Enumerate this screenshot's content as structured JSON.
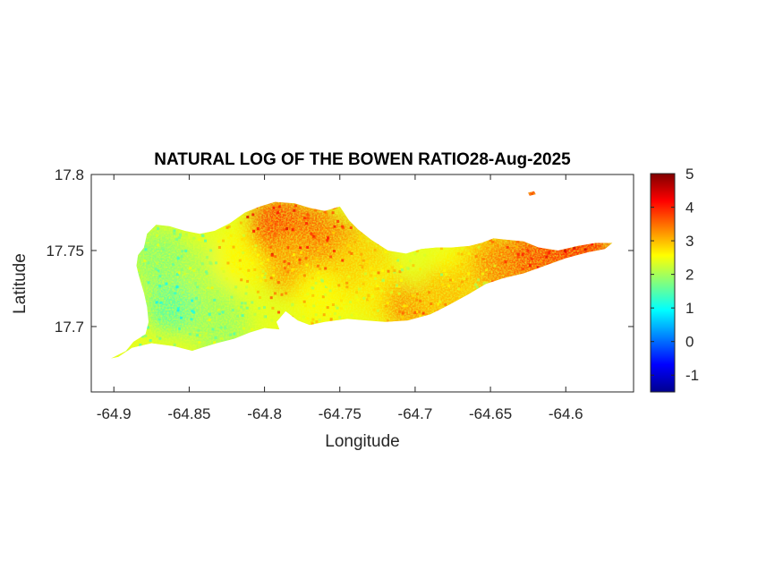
{
  "chart_data": {
    "type": "heatmap",
    "title": "NATURAL LOG OF THE BOWEN RATIO28-Aug-2025",
    "xlabel": "Longitude",
    "ylabel": "Latitude",
    "xlim": [
      -64.915,
      -64.555
    ],
    "ylim": [
      17.657,
      17.8
    ],
    "xticks": [
      -64.9,
      -64.85,
      -64.8,
      -64.75,
      -64.7,
      -64.65,
      -64.6
    ],
    "xtick_labels": [
      "-64.9",
      "-64.85",
      "-64.8",
      "-64.75",
      "-64.7",
      "-64.65",
      "-64.6"
    ],
    "yticks": [
      17.7,
      17.75,
      17.8
    ],
    "ytick_labels": [
      "17.7",
      "17.75",
      "17.8"
    ],
    "grid": false,
    "colormap": "jet",
    "colorbar": {
      "range": [
        -1.5,
        5
      ],
      "ticks": [
        -1,
        0,
        1,
        2,
        3,
        4,
        5
      ],
      "tick_labels": [
        "-1",
        "0",
        "1",
        "2",
        "3",
        "4",
        "5"
      ]
    },
    "region_outline": [
      [
        -64.9,
        17.68
      ],
      [
        -64.892,
        17.684
      ],
      [
        -64.887,
        17.69
      ],
      [
        -64.879,
        17.695
      ],
      [
        -64.877,
        17.703
      ],
      [
        -64.878,
        17.713
      ],
      [
        -64.88,
        17.722
      ],
      [
        -64.883,
        17.732
      ],
      [
        -64.885,
        17.74
      ],
      [
        -64.884,
        17.747
      ],
      [
        -64.88,
        17.752
      ],
      [
        -64.878,
        17.761
      ],
      [
        -64.872,
        17.767
      ],
      [
        -64.863,
        17.766
      ],
      [
        -64.853,
        17.763
      ],
      [
        -64.843,
        17.761
      ],
      [
        -64.833,
        17.763
      ],
      [
        -64.823,
        17.768
      ],
      [
        -64.813,
        17.775
      ],
      [
        -64.803,
        17.779
      ],
      [
        -64.793,
        17.782
      ],
      [
        -64.78,
        17.781
      ],
      [
        -64.77,
        17.778
      ],
      [
        -64.76,
        17.776
      ],
      [
        -64.75,
        17.779
      ],
      [
        -64.744,
        17.77
      ],
      [
        -64.738,
        17.764
      ],
      [
        -64.729,
        17.757
      ],
      [
        -64.718,
        17.75
      ],
      [
        -64.706,
        17.748
      ],
      [
        -64.696,
        17.751
      ],
      [
        -64.686,
        17.752
      ],
      [
        -64.676,
        17.752
      ],
      [
        -64.664,
        17.753
      ],
      [
        -64.656,
        17.755
      ],
      [
        -64.648,
        17.758
      ],
      [
        -64.638,
        17.757
      ],
      [
        -64.628,
        17.756
      ],
      [
        -64.618,
        17.752
      ],
      [
        -64.605,
        17.75
      ],
      [
        -64.592,
        17.753
      ],
      [
        -64.58,
        17.755
      ],
      [
        -64.569,
        17.755
      ],
      [
        -64.574,
        17.751
      ],
      [
        -64.585,
        17.749
      ],
      [
        -64.6,
        17.745
      ],
      [
        -64.614,
        17.74
      ],
      [
        -64.628,
        17.735
      ],
      [
        -64.641,
        17.732
      ],
      [
        -64.653,
        17.728
      ],
      [
        -64.665,
        17.721
      ],
      [
        -64.678,
        17.714
      ],
      [
        -64.69,
        17.708
      ],
      [
        -64.705,
        17.704
      ],
      [
        -64.72,
        17.703
      ],
      [
        -64.733,
        17.704
      ],
      [
        -64.745,
        17.705
      ],
      [
        -64.76,
        17.703
      ],
      [
        -64.77,
        17.701
      ],
      [
        -64.778,
        17.704
      ],
      [
        -64.786,
        17.71
      ],
      [
        -64.792,
        17.703
      ],
      [
        -64.79,
        17.698
      ],
      [
        -64.8,
        17.699
      ],
      [
        -64.81,
        17.696
      ],
      [
        -64.82,
        17.692
      ],
      [
        -64.832,
        17.689
      ],
      [
        -64.842,
        17.686
      ],
      [
        -64.848,
        17.684
      ],
      [
        -64.86,
        17.687
      ],
      [
        -64.875,
        17.689
      ],
      [
        -64.888,
        17.686
      ],
      [
        -64.897,
        17.68
      ],
      [
        -64.902,
        17.679
      ]
    ],
    "islet_outline": [
      [
        -64.625,
        17.788
      ],
      [
        -64.621,
        17.789
      ],
      [
        -64.62,
        17.787
      ],
      [
        -64.624,
        17.786
      ]
    ],
    "value_zones": [
      {
        "lon": -64.86,
        "lat": 17.715,
        "value": 1.5
      },
      {
        "lon": -64.87,
        "lat": 17.745,
        "value": 1.8
      },
      {
        "lon": -64.835,
        "lat": 17.735,
        "value": 2.0
      },
      {
        "lon": -64.83,
        "lat": 17.7,
        "value": 1.9
      },
      {
        "lon": -64.815,
        "lat": 17.745,
        "value": 2.6
      },
      {
        "lon": -64.79,
        "lat": 17.765,
        "value": 3.8
      },
      {
        "lon": -64.77,
        "lat": 17.76,
        "value": 3.6
      },
      {
        "lon": -64.78,
        "lat": 17.74,
        "value": 3.2
      },
      {
        "lon": -64.75,
        "lat": 17.75,
        "value": 3.4
      },
      {
        "lon": -64.76,
        "lat": 17.72,
        "value": 2.6
      },
      {
        "lon": -64.735,
        "lat": 17.74,
        "value": 2.9
      },
      {
        "lon": -64.72,
        "lat": 17.72,
        "value": 2.7
      },
      {
        "lon": -64.7,
        "lat": 17.715,
        "value": 3.3
      },
      {
        "lon": -64.69,
        "lat": 17.74,
        "value": 2.4
      },
      {
        "lon": -64.67,
        "lat": 17.735,
        "value": 2.6
      },
      {
        "lon": -64.68,
        "lat": 17.718,
        "value": 3.0
      },
      {
        "lon": -64.65,
        "lat": 17.745,
        "value": 2.9
      },
      {
        "lon": -64.64,
        "lat": 17.74,
        "value": 3.4
      },
      {
        "lon": -64.615,
        "lat": 17.747,
        "value": 3.7
      },
      {
        "lon": -64.59,
        "lat": 17.752,
        "value": 3.9
      },
      {
        "lon": -64.623,
        "lat": 17.788,
        "value": 3.8
      }
    ]
  }
}
